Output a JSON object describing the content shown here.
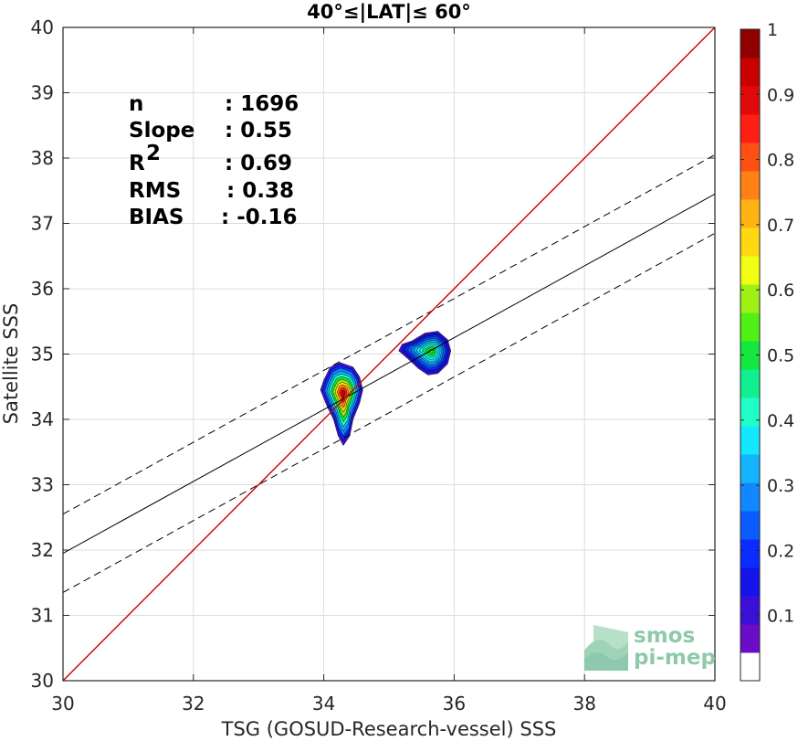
{
  "chart_data": {
    "type": "scatter",
    "title": "40°≤|LAT|≤ 60°",
    "xlabel": "TSG (GOSUD-Research-vessel) SSS",
    "ylabel": "Satellite SSS",
    "xlim": [
      30,
      40
    ],
    "ylim": [
      30,
      40
    ],
    "xticks": [
      30,
      32,
      34,
      36,
      38,
      40
    ],
    "yticks": [
      30,
      31,
      32,
      33,
      34,
      35,
      36,
      37,
      38,
      39,
      40
    ],
    "grid": true,
    "stats": [
      {
        "label": "n",
        "sep": ": ",
        "value": "1696"
      },
      {
        "label": "Slope",
        "sep": ": ",
        "value": "0.55"
      },
      {
        "label": "R",
        "sup": "2",
        "sep": ": ",
        "value": "0.69"
      },
      {
        "label": "RMS",
        "sep": ": ",
        "value": "0.38"
      },
      {
        "label": "BIAS",
        "sep": ": ",
        "value": "-0.16"
      }
    ],
    "lines": {
      "one_to_one": {
        "x": [
          30,
          40
        ],
        "y": [
          30,
          40
        ],
        "color": "#cc0000"
      },
      "regression": {
        "x": [
          30,
          40
        ],
        "y": [
          31.95,
          37.45
        ],
        "color": "#000000"
      },
      "upper_bound": {
        "x": [
          30,
          40
        ],
        "y": [
          32.55,
          38.05
        ],
        "color": "#000000",
        "style": "dashed"
      },
      "lower_bound": {
        "x": [
          30,
          40
        ],
        "y": [
          31.35,
          36.85
        ],
        "color": "#000000",
        "style": "dashed"
      }
    },
    "density_clusters": [
      {
        "cx": 34.3,
        "cy": 34.4,
        "peak": 0.97,
        "outline": [
          [
            34.3,
            33.6
          ],
          [
            34.4,
            33.75
          ],
          [
            34.45,
            34.0
          ],
          [
            34.55,
            34.25
          ],
          [
            34.6,
            34.45
          ],
          [
            34.55,
            34.65
          ],
          [
            34.45,
            34.8
          ],
          [
            34.25,
            34.87
          ],
          [
            34.1,
            34.8
          ],
          [
            34.0,
            34.6
          ],
          [
            33.95,
            34.45
          ],
          [
            34.05,
            34.2
          ],
          [
            34.15,
            34.0
          ],
          [
            34.22,
            33.75
          ]
        ]
      },
      {
        "cx": 35.65,
        "cy": 35.05,
        "peak": 0.55,
        "outline": [
          [
            35.2,
            35.15
          ],
          [
            35.35,
            35.2
          ],
          [
            35.55,
            35.32
          ],
          [
            35.75,
            35.35
          ],
          [
            35.9,
            35.22
          ],
          [
            35.95,
            35.05
          ],
          [
            35.9,
            34.85
          ],
          [
            35.75,
            34.7
          ],
          [
            35.6,
            34.68
          ],
          [
            35.45,
            34.78
          ],
          [
            35.3,
            34.92
          ],
          [
            35.15,
            35.05
          ]
        ]
      }
    ],
    "colorbar": {
      "min": 0,
      "max": 1,
      "ticks": [
        "0.1",
        "0.2",
        "0.3",
        "0.4",
        "0.5",
        "0.6",
        "0.7",
        "0.8",
        "0.9",
        "1"
      ],
      "colors": [
        "#ffffff",
        "#6a0cc8",
        "#3a10d8",
        "#1414e8",
        "#0a2cff",
        "#0a5cff",
        "#1088ff",
        "#14b4ff",
        "#14e8ff",
        "#20ffc8",
        "#10f090",
        "#14e840",
        "#50f014",
        "#a0f014",
        "#f0ff14",
        "#ffd814",
        "#ffb414",
        "#ff8014",
        "#ff5014",
        "#ff1e14",
        "#e00a0a",
        "#c80000",
        "#900000"
      ]
    }
  },
  "logo": {
    "line1": "smos",
    "line2": "pi-mep"
  }
}
